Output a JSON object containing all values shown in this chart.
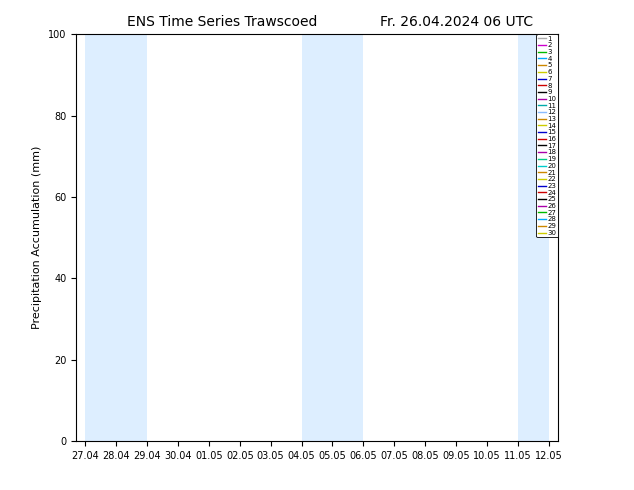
{
  "title_left": "ENS Time Series Trawscoed",
  "title_right": "Fr. 26.04.2024 06 UTC",
  "ylabel": "Precipitation Accumulation (mm)",
  "ylim": [
    0,
    100
  ],
  "yticks": [
    0,
    20,
    40,
    60,
    80,
    100
  ],
  "background_color": "#ffffff",
  "plot_bg_color": "#ffffff",
  "shaded_positions": [
    [
      0,
      1
    ],
    [
      1,
      2
    ],
    [
      7,
      8
    ],
    [
      8,
      9
    ],
    [
      14,
      15
    ]
  ],
  "xtick_labels": [
    "27.04",
    "28.04",
    "29.04",
    "30.04",
    "01.05",
    "02.05",
    "03.05",
    "04.05",
    "05.05",
    "06.05",
    "07.05",
    "08.05",
    "09.05",
    "10.05",
    "11.05",
    "12.05"
  ],
  "xtick_positions": [
    0,
    1,
    2,
    3,
    4,
    5,
    6,
    7,
    8,
    9,
    10,
    11,
    12,
    13,
    14,
    15
  ],
  "xlim": [
    -0.3,
    15.3
  ],
  "member_colors": [
    "#aaaaaa",
    "#cc00cc",
    "#00bb00",
    "#00aaff",
    "#cc8800",
    "#cccc00",
    "#0000cc",
    "#cc0000",
    "#000000",
    "#aa00aa",
    "#00aaaa",
    "#88bbff",
    "#cc8800",
    "#cccc00",
    "#0000cc",
    "#cc0000",
    "#000000",
    "#aa00aa",
    "#00cc88",
    "#00cccc",
    "#cc8800",
    "#cccc00",
    "#0000cc",
    "#cc0000",
    "#000000",
    "#aa00aa",
    "#00bb00",
    "#00aaff",
    "#cc8800",
    "#cccc00"
  ],
  "n_members": 30,
  "shaded_color": "#ddeeff",
  "title_fontsize": 10,
  "axis_fontsize": 8,
  "tick_fontsize": 7,
  "legend_fontsize": 5.0
}
